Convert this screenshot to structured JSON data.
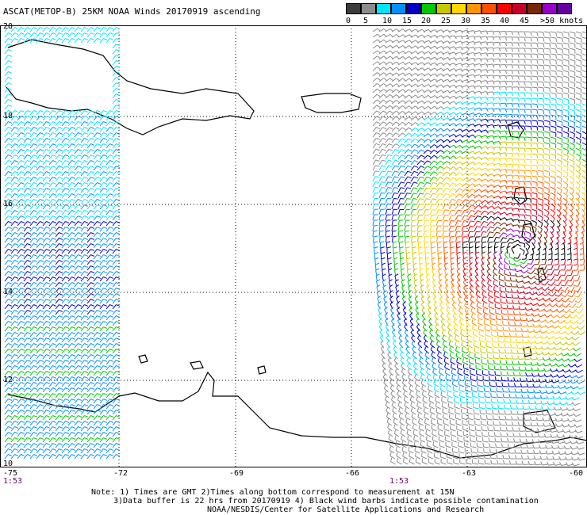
{
  "title": "ASCAT(METOP-B) 25KM NOAA Winds 20170919 ascending",
  "legend": {
    "labels": [
      "0",
      "5",
      "10",
      "15",
      "20",
      "25",
      "30",
      "35",
      "40",
      "45",
      ">50 knots"
    ],
    "colors": [
      "#3c3c3c",
      "#8c8c8c",
      "#00e5ff",
      "#0090ff",
      "#0000c8",
      "#00c800",
      "#c8c800",
      "#ffd800",
      "#ff9600",
      "#ff5000",
      "#ff0000",
      "#c80028",
      "#782800",
      "#9600c8",
      "#6400a0"
    ]
  },
  "lat_labels": [
    "20",
    "18",
    "16",
    "14",
    "12",
    "10"
  ],
  "lon_labels": [
    "-75",
    "-72",
    "-69",
    "-66",
    "-63",
    "-60"
  ],
  "time_labels": [
    "1:53",
    "1:53"
  ],
  "notes": [
    "Note: 1) Times are GMT 2)Times along bottom correspond to measurement at 15N",
    "3)Data buffer is 22 hrs from 20170919 4) Black wind barbs indicate possible contamination",
    "NOAA/NESDIS/Center for Satellite Applications and Research"
  ]
}
